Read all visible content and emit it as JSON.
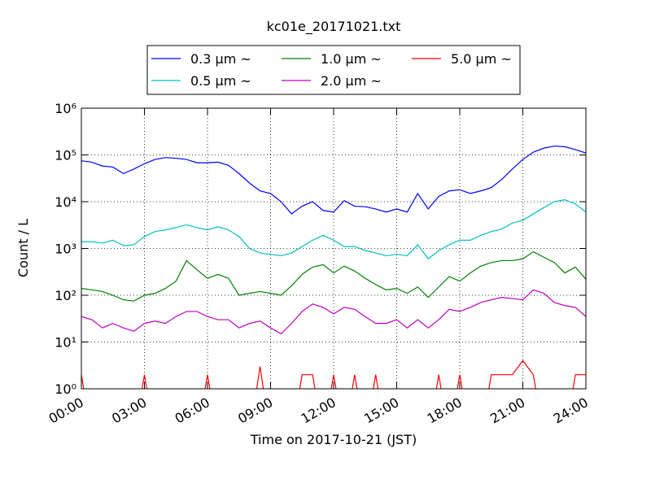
{
  "chart_data": {
    "type": "line",
    "title": "kc01e_20171021.txt",
    "x_label": "Time on 2017-10-21 (JST)",
    "y_label": "Count / L",
    "log_y": true,
    "grid": true,
    "xlim": [
      0,
      24
    ],
    "xticks": [
      {
        "value": 0,
        "label": "00:00"
      },
      {
        "value": 3,
        "label": "03:00"
      },
      {
        "value": 6,
        "label": "06:00"
      },
      {
        "value": 9,
        "label": "09:00"
      },
      {
        "value": 12,
        "label": "12:00"
      },
      {
        "value": 15,
        "label": "15:00"
      },
      {
        "value": 18,
        "label": "18:00"
      },
      {
        "value": 21,
        "label": "21:00"
      },
      {
        "value": 24,
        "label": "24:00"
      }
    ],
    "ylim": [
      1,
      1000000
    ],
    "yticks": [
      {
        "value": 1,
        "label": "10⁰"
      },
      {
        "value": 10,
        "label": "10¹"
      },
      {
        "value": 100,
        "label": "10²"
      },
      {
        "value": 1000,
        "label": "10³"
      },
      {
        "value": 10000,
        "label": "10⁴"
      },
      {
        "value": 100000,
        "label": "10⁵"
      },
      {
        "value": 1000000,
        "label": "10⁶"
      }
    ],
    "x": [
      0,
      0.5,
      1,
      1.5,
      2,
      2.5,
      3,
      3.5,
      4,
      4.5,
      5,
      5.5,
      6,
      6.5,
      7,
      7.5,
      8,
      8.5,
      9,
      9.5,
      10,
      10.5,
      11,
      11.5,
      12,
      12.5,
      13,
      13.5,
      14,
      14.5,
      15,
      15.5,
      16,
      16.5,
      17,
      17.5,
      18,
      18.5,
      19,
      19.5,
      20,
      20.5,
      21,
      21.5,
      22,
      22.5,
      23,
      23.5,
      24
    ],
    "series": [
      {
        "name": "0.3 μm ~",
        "color": "#0000ff",
        "values": [
          75000,
          70000,
          58000,
          55000,
          40000,
          50000,
          65000,
          80000,
          88000,
          85000,
          80000,
          68000,
          68000,
          70000,
          60000,
          40000,
          25000,
          17000,
          15000,
          10000,
          5500,
          8000,
          10000,
          6500,
          6000,
          10500,
          8000,
          7800,
          7000,
          6000,
          7000,
          6000,
          15000,
          7000,
          13000,
          17000,
          18000,
          15000,
          17000,
          20000,
          30000,
          50000,
          80000,
          115000,
          140000,
          155000,
          150000,
          130000,
          110000
        ]
      },
      {
        "name": "0.5 μm ~",
        "color": "#00bfbf",
        "values": [
          1400,
          1400,
          1300,
          1500,
          1150,
          1200,
          1800,
          2300,
          2500,
          2800,
          3200,
          2800,
          2500,
          2900,
          2500,
          1800,
          1000,
          800,
          750,
          700,
          800,
          1100,
          1500,
          1900,
          1500,
          1100,
          1100,
          900,
          800,
          700,
          750,
          700,
          1200,
          600,
          900,
          1200,
          1500,
          1500,
          1900,
          2300,
          2600,
          3500,
          4000,
          5500,
          7500,
          10000,
          11000,
          9000,
          6000
        ]
      },
      {
        "name": "1.0 μm ~",
        "color": "#008000",
        "values": [
          140,
          130,
          120,
          100,
          80,
          75,
          100,
          110,
          140,
          200,
          550,
          350,
          230,
          280,
          230,
          100,
          110,
          120,
          110,
          100,
          160,
          280,
          400,
          450,
          300,
          420,
          330,
          230,
          170,
          130,
          140,
          110,
          150,
          90,
          150,
          250,
          200,
          300,
          420,
          500,
          550,
          550,
          600,
          850,
          650,
          500,
          300,
          400,
          220
        ]
      },
      {
        "name": "2.0 μm ~",
        "color": "#bf00bf",
        "values": [
          35,
          30,
          20,
          25,
          20,
          17,
          25,
          28,
          25,
          35,
          45,
          45,
          35,
          30,
          30,
          20,
          25,
          28,
          20,
          15,
          25,
          45,
          65,
          55,
          40,
          55,
          50,
          35,
          25,
          25,
          30,
          20,
          30,
          20,
          30,
          50,
          45,
          55,
          70,
          80,
          90,
          85,
          80,
          130,
          110,
          70,
          60,
          55,
          35
        ]
      },
      {
        "name": "5.0 μm ~",
        "color": "#ff0000",
        "values": [
          2,
          0,
          0,
          0,
          0,
          0,
          2,
          0,
          0,
          0,
          0,
          0,
          2,
          0,
          0,
          0,
          0,
          3,
          0,
          0,
          0,
          2,
          2,
          0,
          2,
          0,
          2,
          0,
          2,
          0,
          0,
          0,
          0,
          0,
          2,
          0,
          2,
          0,
          0,
          2,
          2,
          2,
          4,
          2,
          0,
          0,
          0,
          2,
          2
        ]
      }
    ]
  }
}
